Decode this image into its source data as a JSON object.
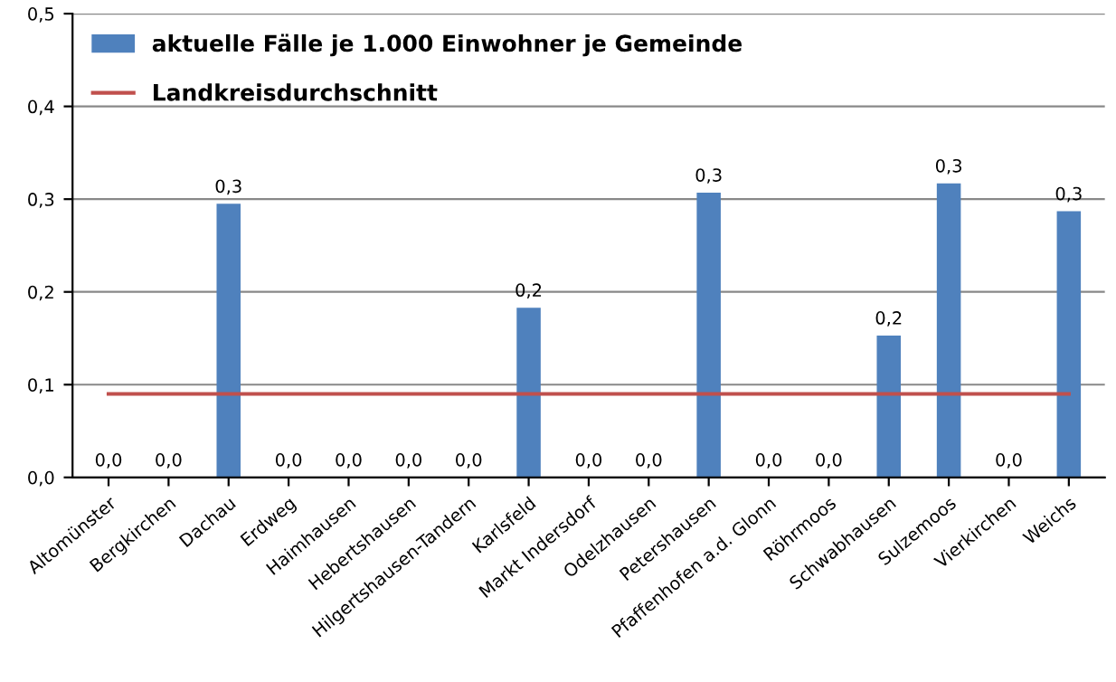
{
  "chart_data": {
    "type": "bar",
    "categories": [
      "Altomünster",
      "Bergkirchen",
      "Dachau",
      "Erdweg",
      "Haimhausen",
      "Hebertshausen",
      "Hilgertshausen-Tandern",
      "Karlsfeld",
      "Markt Indersdorf",
      "Odelzhausen",
      "Petershausen",
      "Pfaffenhofen a.d. Glonn",
      "Röhrmoos",
      "Schwabhausen",
      "Sulzemoos",
      "Vierkirchen",
      "Weichs"
    ],
    "series": [
      {
        "name": "aktuelle Fälle je 1.000 Einwohner je Gemeinde",
        "color": "#4f81bd",
        "values": [
          0,
          0,
          0.295,
          0,
          0,
          0,
          0,
          0.183,
          0,
          0,
          0.307,
          0,
          0,
          0.153,
          0.317,
          0,
          0.287
        ],
        "value_labels": [
          "0,0",
          "0,0",
          "0,3",
          "0,0",
          "0,0",
          "0,0",
          "0,0",
          "0,2",
          "0,0",
          "0,0",
          "0,3",
          "0,0",
          "0,0",
          "0,2",
          "0,3",
          "0,0",
          "0,3"
        ]
      },
      {
        "name": "Landkreisdurchschnitt",
        "type": "line",
        "color": "#c0504d",
        "values": [
          0.09,
          0.09,
          0.09,
          0.09,
          0.09,
          0.09,
          0.09,
          0.09,
          0.09,
          0.09,
          0.09,
          0.09,
          0.09,
          0.09,
          0.09,
          0.09,
          0.09
        ]
      }
    ],
    "ylim": [
      0,
      0.5
    ],
    "yticks": [
      {
        "value": 0,
        "label": "0,0"
      },
      {
        "value": 0.1,
        "label": "0,1"
      },
      {
        "value": 0.2,
        "label": "0,2"
      },
      {
        "value": 0.3,
        "label": "0,3"
      },
      {
        "value": 0.4,
        "label": "0,4"
      },
      {
        "value": 0.5,
        "label": "0,5"
      }
    ],
    "grid": "y",
    "legend": "top left"
  }
}
